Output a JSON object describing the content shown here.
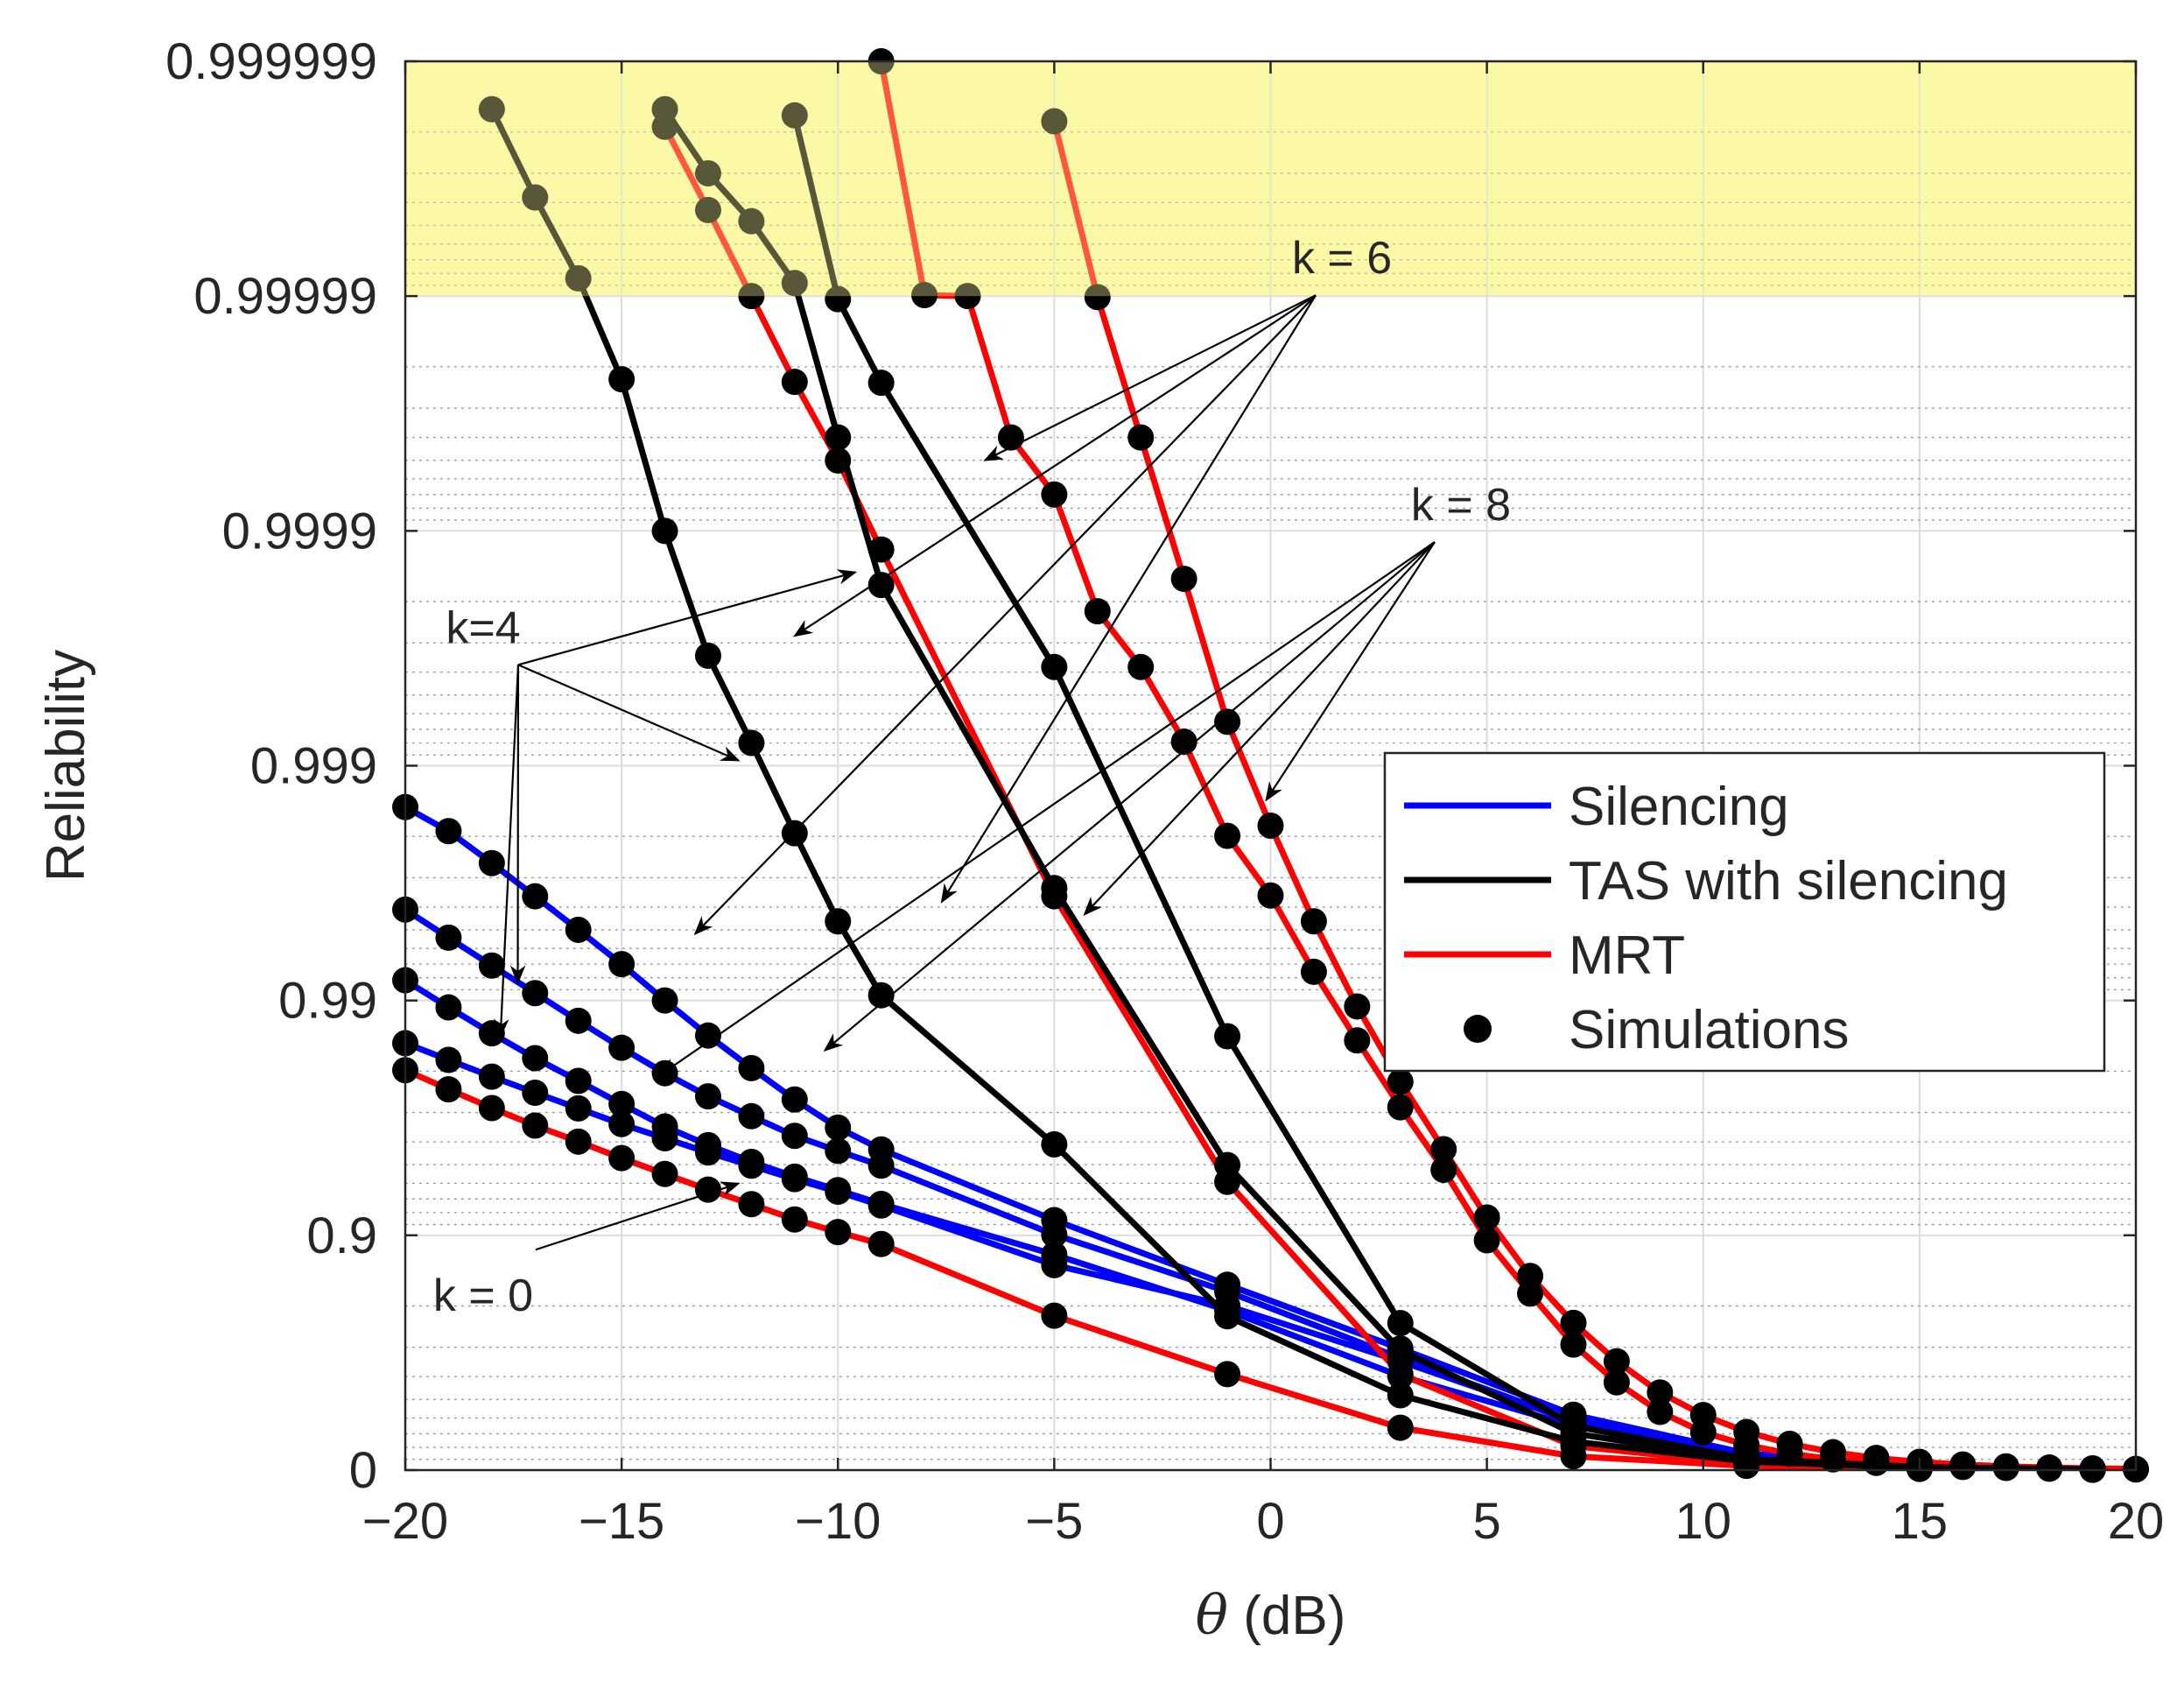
{
  "chart_data": {
    "type": "line",
    "title": "",
    "xlabel_symbol": "θ",
    "xlabel_unit": "(dB)",
    "ylabel": "Reliability",
    "xlim": [
      -20,
      20
    ],
    "ylim": [
      0,
      0.999999
    ],
    "y_scale": "log of (1 - Reliability)",
    "x_ticks": [
      -20,
      -15,
      -10,
      -5,
      0,
      5,
      10,
      15,
      20
    ],
    "x_tick_labels": [
      "−20",
      "−15",
      "−10",
      "−5",
      "0",
      "5",
      "10",
      "15",
      "20"
    ],
    "y_ticks": [
      0,
      0.9,
      0.99,
      0.999,
      0.9999,
      0.99999,
      0.999999
    ],
    "y_tick_labels": [
      "0",
      "0.9",
      "0.99",
      "0.999",
      "0.9999",
      "0.99999",
      "0.999999"
    ],
    "grid": true,
    "highlight_region": {
      "y_from": 0.99999,
      "y_to": 0.999999,
      "color": "#fbf8a6"
    },
    "legend": {
      "position": "right",
      "entries": [
        {
          "label": "Silencing",
          "color": "#0000ff",
          "kind": "line"
        },
        {
          "label": "TAS with silencing",
          "color": "#000000",
          "kind": "line"
        },
        {
          "label": "MRT",
          "color": "#ff0000",
          "kind": "line"
        },
        {
          "label": "Simulations",
          "color": "#000000",
          "kind": "marker"
        }
      ]
    },
    "series": [
      {
        "name": "Silencing k=0",
        "scheme": "Silencing",
        "k": 0,
        "color": "#0000ff",
        "x": [
          -20,
          -19,
          -18,
          -17,
          -16,
          -15,
          -14,
          -13,
          -12,
          -11,
          -10,
          -9,
          -5,
          -1,
          3,
          7,
          11,
          15,
          19
        ],
        "y": [
          0.9848,
          0.9821,
          0.9789,
          0.9753,
          0.9712,
          0.9664,
          0.9614,
          0.9556,
          0.9495,
          0.9424,
          0.9348,
          0.9254,
          0.8661,
          0.8005,
          0.6561,
          0.3817,
          0.1324,
          0.0381,
          0.0094
        ]
      },
      {
        "name": "Silencing k=4",
        "scheme": "Silencing",
        "k": 4,
        "color": "#0000ff",
        "x": [
          -20,
          -19,
          -18,
          -17,
          -16,
          -15,
          -14,
          -13,
          -12,
          -11,
          -10,
          -9,
          -5,
          -1,
          3,
          7,
          11,
          15,
          19
        ],
        "y": [
          0.9918,
          0.9893,
          0.9862,
          0.9824,
          0.978,
          0.9724,
          0.9656,
          0.9587,
          0.9513,
          0.9437,
          0.9358,
          0.9265,
          0.8791,
          0.7909,
          0.6024,
          0.3513,
          0.128,
          0.0373,
          0.0094
        ]
      },
      {
        "name": "Silencing k=6",
        "scheme": "Silencing",
        "k": 6,
        "color": "#0000ff",
        "x": [
          -20,
          -19,
          -18,
          -17,
          -16,
          -15,
          -14,
          -13,
          -12,
          -11,
          -10,
          -9,
          -5,
          -1,
          3,
          7,
          11,
          15,
          19
        ],
        "y": [
          0.9959,
          0.9946,
          0.9929,
          0.9907,
          0.9878,
          0.9841,
          0.9796,
          0.9744,
          0.9689,
          0.9623,
          0.9563,
          0.9495,
          0.9006,
          0.8263,
          0.6668,
          0.3817,
          0.1324,
          0.0381,
          0.0094
        ]
      },
      {
        "name": "Silencing k=8",
        "scheme": "Silencing",
        "k": 8,
        "color": "#0000ff",
        "x": [
          -20,
          -19,
          -18,
          -17,
          -16,
          -15,
          -14,
          -13,
          -12,
          -11,
          -10,
          -9,
          -5,
          -1,
          3,
          7,
          11,
          15,
          19
        ],
        "y": [
          0.9985,
          0.9981,
          0.9974,
          0.9964,
          0.995,
          0.993,
          0.99,
          0.9859,
          0.9806,
          0.9736,
          0.9652,
          0.9569,
          0.9138,
          0.8376,
          0.6963,
          0.419,
          0.151,
          0.0416,
          0.0101
        ]
      },
      {
        "name": "TAS with silencing k=4",
        "scheme": "TAS with silencing",
        "k": 4,
        "color": "#000000",
        "x": [
          -18,
          -17,
          -16,
          -15,
          -14,
          -13,
          -12,
          -11,
          -10,
          -9,
          -5,
          -1,
          3,
          7,
          11,
          15,
          19
        ],
        "y": [
          0.9999984,
          0.9999962,
          0.9999916,
          0.9999774,
          0.9999,
          0.99966,
          0.9992,
          0.99806,
          0.9954,
          0.9905,
          0.959,
          0.77875,
          0.52,
          0.245,
          0.081,
          0.023,
          0.0055
        ]
      },
      {
        "name": "TAS with silencing k=6",
        "scheme": "TAS with silencing",
        "k": 6,
        "color": "#000000",
        "x": [
          -14,
          -13,
          -12,
          -11,
          -10,
          -9,
          -5,
          -1,
          3,
          7,
          11,
          15,
          19
        ],
        "y": [
          0.9999984,
          0.999997,
          0.9999952,
          0.9999912,
          0.99996,
          0.99983,
          0.99668,
          0.9498,
          0.6913,
          0.302,
          0.095,
          0.026,
          0.0063
        ]
      },
      {
        "name": "TAS with silencing k=8",
        "scheme": "TAS with silencing",
        "k": 8,
        "color": "#000000",
        "x": [
          -11,
          -10,
          -9,
          -5,
          -1,
          3,
          7,
          11,
          15,
          19
        ],
        "y": [
          0.9999983,
          0.9999897,
          0.9999766,
          0.99962,
          0.9858,
          0.7634,
          0.352,
          0.105,
          0.0285,
          0.0068
        ]
      },
      {
        "name": "MRT k=0",
        "scheme": "MRT",
        "k": 0,
        "color": "#ff0000",
        "x": [
          -20,
          -19,
          -18,
          -17,
          -16,
          -15,
          -14,
          -13,
          -12,
          -11,
          -10,
          -9,
          -5,
          -1,
          3,
          7,
          11,
          15,
          19
        ],
        "y": [
          0.9802,
          0.9761,
          0.9713,
          0.9659,
          0.9601,
          0.9531,
          0.9452,
          0.9361,
          0.9263,
          0.9144,
          0.9031,
          0.8911,
          0.78,
          0.61,
          0.34,
          0.127,
          0.041,
          0.0118,
          0.003
        ]
      },
      {
        "name": "MRT k=4",
        "scheme": "MRT",
        "k": 4,
        "color": "#ff0000",
        "x": [
          -14,
          -13,
          -12,
          -11,
          -10,
          -9,
          -5,
          -1,
          3,
          7,
          11,
          15,
          19
        ],
        "y": [
          0.9999981,
          0.9999957,
          0.99999,
          0.9999768,
          0.9999499,
          0.99988,
          0.9964,
          0.9408,
          0.6095,
          0.21,
          0.06,
          0.016,
          0.004
        ]
      },
      {
        "name": "MRT k=6",
        "scheme": "MRT",
        "k": 6,
        "color": "#ff0000",
        "x": [
          -9,
          -8,
          -7,
          -6,
          -5,
          -4,
          -3,
          -2,
          -1,
          0,
          1,
          2,
          3,
          4,
          5,
          6,
          7,
          8,
          9,
          10,
          11,
          12,
          13,
          14,
          15,
          16,
          17,
          18,
          19,
          20
        ],
        "y": [
          0.9999995,
          0.9999901,
          0.99999,
          0.99996,
          0.99993,
          0.99978,
          0.99962,
          0.99921,
          0.99801,
          0.99643,
          0.99245,
          0.98521,
          0.9715,
          0.9474,
          0.895,
          0.823,
          0.708,
          0.577,
          0.435,
          0.31,
          0.218,
          0.149,
          0.1,
          0.068,
          0.046,
          0.031,
          0.021,
          0.0142,
          0.0096,
          0.0065
        ]
      },
      {
        "name": "MRT k=8",
        "scheme": "MRT",
        "k": 8,
        "color": "#ff0000",
        "x": [
          -5,
          -4,
          -3,
          -2,
          -1,
          0,
          1,
          2,
          3,
          4,
          5,
          6,
          7,
          8,
          9,
          10,
          11,
          12,
          13,
          14,
          15,
          16,
          17,
          18,
          19,
          20
        ],
        "y": [
          0.9999982,
          0.9999899,
          0.99996,
          0.99984,
          0.99935,
          0.9982,
          0.9954,
          0.9894,
          0.9778,
          0.957,
          0.916,
          0.851,
          0.764,
          0.656,
          0.533,
          0.417,
          0.312,
          0.227,
          0.161,
          0.112,
          0.077,
          0.053,
          0.036,
          0.025,
          0.017,
          0.012
        ]
      }
    ],
    "annotations": [
      {
        "text": "k = 6",
        "x": 1.65,
        "y": 0.999992,
        "targets": [
          [
            -6.6,
            0.99995
          ],
          [
            -7.6,
            0.9962
          ],
          [
            -11.0,
            0.99972
          ],
          [
            -13.3,
            0.9948
          ]
        ]
      },
      {
        "text": "k = 8",
        "x": 4.4,
        "y": 0.99991,
        "targets": [
          [
            -0.1,
            0.9986
          ],
          [
            -4.3,
            0.9957
          ],
          [
            -10.3,
            0.9837
          ],
          [
            -14.1,
            0.9793
          ]
        ]
      },
      {
        "text": "k=4",
        "x": -18.2,
        "y": 0.9997,
        "targets": [
          [
            -9.6,
            0.99985
          ],
          [
            -12.3,
            0.99905
          ],
          [
            -17.4,
            0.9916
          ],
          [
            -17.8,
            0.9858
          ]
        ]
      },
      {
        "text": "k = 0",
        "x": -18.2,
        "y": 0.79,
        "targets": [
          [
            -12.3,
            0.9398
          ]
        ]
      }
    ]
  }
}
